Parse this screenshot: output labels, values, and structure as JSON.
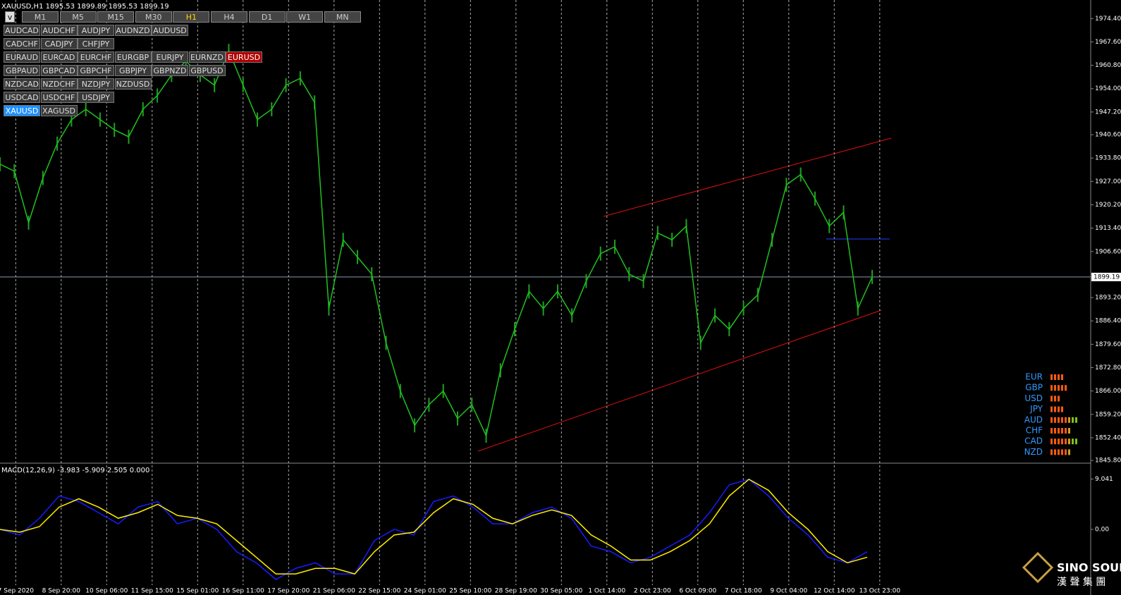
{
  "header": {
    "title": "XAUUSD,H1 1895.53 1899.89 1895.53 1899.19"
  },
  "toolbar": {
    "menu": "v",
    "timeframes": [
      "M1",
      "M5",
      "M15",
      "M30",
      "H1",
      "H4",
      "D1",
      "W1",
      "MN"
    ],
    "active": "H1"
  },
  "symbols": {
    "rows": [
      [
        "AUDCAD",
        "AUDCHF",
        "AUDJPY",
        "AUDNZD",
        "AUDUSD"
      ],
      [
        "CADCHF",
        "CADJPY",
        "CHFJPY"
      ],
      [
        "EURAUD",
        "EURCAD",
        "EURCHF",
        "EURGBP",
        "EURJPY",
        "EURNZD",
        "EURUSD"
      ],
      [
        "GBPAUD",
        "GBPCAD",
        "GBPCHF",
        "GBPJPY",
        "GBPNZD",
        "GBPUSD"
      ],
      [
        "NZDCAD",
        "NZDCHF",
        "NZDJPY",
        "NZDUSD"
      ],
      [
        "USDCAD",
        "USDCHF",
        "USDJPY"
      ],
      [
        "XAUUSD",
        "XAGUSD"
      ]
    ],
    "selected": "XAUUSD",
    "alert": "EURUSD"
  },
  "price_chart": {
    "ylim": [
      1845.0,
      1979.8
    ],
    "current": 1899.19,
    "yticks": [
      {
        "value": 1974.4,
        "label": "1974.40"
      },
      {
        "value": 1967.6,
        "label": "1967.60"
      },
      {
        "value": 1960.8,
        "label": "1960.80"
      },
      {
        "value": 1954.0,
        "label": "1954.00"
      },
      {
        "value": 1947.2,
        "label": "1947.20"
      },
      {
        "value": 1940.6,
        "label": "1940.60"
      },
      {
        "value": 1933.8,
        "label": "1933.80"
      },
      {
        "value": 1927.0,
        "label": "1927.00"
      },
      {
        "value": 1920.2,
        "label": "1920.20"
      },
      {
        "value": 1913.4,
        "label": "1913.40"
      },
      {
        "value": 1906.6,
        "label": "1906.60"
      },
      {
        "value": 1893.2,
        "label": "1893.20"
      },
      {
        "value": 1886.4,
        "label": "1886.40"
      },
      {
        "value": 1879.6,
        "label": "1879.60"
      },
      {
        "value": 1872.8,
        "label": "1872.80"
      },
      {
        "value": 1866.0,
        "label": "1866.00"
      },
      {
        "value": 1859.2,
        "label": "1859.20"
      },
      {
        "value": 1852.4,
        "label": "1852.40"
      },
      {
        "value": 1845.8,
        "label": "1845.80"
      }
    ],
    "closes": [
      1932,
      1930,
      1915,
      1928,
      1938,
      1945,
      1948,
      1945,
      1942,
      1940,
      1948,
      1952,
      1958,
      1962,
      1958,
      1955,
      1965,
      1955,
      1945,
      1948,
      1955,
      1957,
      1950,
      1890,
      1910,
      1905,
      1900,
      1880,
      1866,
      1856,
      1862,
      1866,
      1858,
      1862,
      1853,
      1872,
      1884,
      1895,
      1890,
      1895,
      1888,
      1898,
      1906,
      1908,
      1900,
      1898,
      1912,
      1910,
      1914,
      1880,
      1888,
      1884,
      1890,
      1894,
      1910,
      1926,
      1929,
      1922,
      1914,
      1918,
      1890,
      1899.19
    ],
    "dates": [
      "7 Sep 2020",
      "8 Sep 20:00",
      "10 Sep 06:00",
      "11 Sep 15:00",
      "15 Sep 01:00",
      "16 Sep 11:00",
      "17 Sep 20:00",
      "21 Sep 06:00",
      "22 Sep 15:00",
      "24 Sep 01:00",
      "25 Sep 10:00",
      "28 Sep 19:00",
      "30 Sep 05:00",
      "1 Oct 14:00",
      "2 Oct 23:00",
      "6 Oct 09:00",
      "7 Oct 18:00",
      "9 Oct 04:00",
      "12 Oct 14:00",
      "13 Oct 23:00"
    ]
  },
  "macd": {
    "title": "MACD(12,26,9) -3.983 -5.909 2.505 0.000",
    "ylim": [
      -9.5,
      10.5
    ],
    "yticks": [
      9.041,
      {
        "value": 0,
        "label": "0.00"
      }
    ],
    "macd": [
      0,
      -1,
      2,
      6,
      5,
      3,
      1,
      4,
      5,
      1,
      2,
      0,
      -4,
      -6,
      -9,
      -7,
      -6,
      -8,
      -8,
      -2,
      0,
      -1,
      5,
      6,
      4,
      1,
      1,
      3,
      4,
      2,
      -3,
      -4,
      -6,
      -5,
      -3,
      -1,
      3,
      8,
      9,
      6,
      2,
      -1,
      -5,
      -6,
      -4
    ],
    "signal": [
      0,
      -0.5,
      0.5,
      4,
      5.5,
      4,
      2,
      3,
      4.5,
      2.5,
      2,
      1,
      -2,
      -5,
      -8,
      -8,
      -7,
      -7,
      -8,
      -4,
      -1,
      -0.5,
      3,
      5.5,
      4.5,
      2,
      1,
      2.5,
      3.5,
      2.5,
      -1,
      -3,
      -5.5,
      -5.5,
      -4,
      -2,
      1,
      6,
      9,
      7,
      3,
      0,
      -4,
      -6,
      -5
    ]
  },
  "strength": {
    "currencies": [
      "EUR",
      "GBP",
      "USD",
      "JPY",
      "AUD",
      "CHF",
      "CAD",
      "NZD"
    ],
    "levels": [
      4,
      5,
      3,
      4,
      8,
      6,
      8,
      6
    ]
  },
  "logo": {
    "name": "SINO SOUND",
    "subtitle": "漢 聲 集 團"
  }
}
